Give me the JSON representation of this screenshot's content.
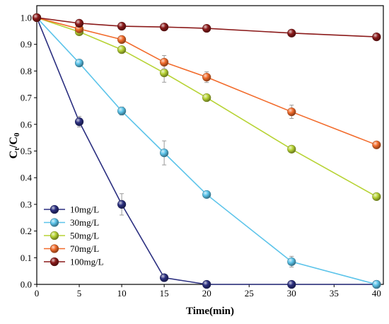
{
  "chart_data": {
    "type": "line",
    "xlabel": "Time(min)",
    "ylabel_segments": [
      {
        "text": "C",
        "sub": false
      },
      {
        "text": "t",
        "sub": true
      },
      {
        "text": "/C",
        "sub": false
      },
      {
        "text": "0",
        "sub": true
      }
    ],
    "x": [
      0,
      5,
      10,
      15,
      20,
      30,
      40
    ],
    "xlim": [
      0,
      40.8
    ],
    "ylim": [
      0,
      1.045
    ],
    "xticks": [
      "0",
      "5",
      "10",
      "15",
      "20",
      "25",
      "30",
      "35",
      "40"
    ],
    "yticks": [
      "0.0",
      "0.1",
      "0.2",
      "0.3",
      "0.4",
      "0.5",
      "0.6",
      "0.7",
      "0.8",
      "0.9",
      "1.0"
    ],
    "grid": false,
    "legend_position": "lower-left",
    "marker": "sphere",
    "errorbar_color": "#9a9a9a",
    "series": [
      {
        "name": "10mg/L",
        "color": "#2b2f80",
        "values": [
          1.0,
          0.61,
          0.3,
          0.025,
          0.0,
          0.0,
          0.0
        ],
        "errors": [
          0,
          0.02,
          0.04,
          0.01,
          0,
          0,
          0
        ]
      },
      {
        "name": "30mg/L",
        "color": "#5cc4ea",
        "values": [
          1.0,
          0.83,
          0.65,
          0.493,
          0.337,
          0.085,
          0.0
        ],
        "errors": [
          0,
          0.01,
          0.015,
          0.045,
          0.01,
          0.02,
          0
        ]
      },
      {
        "name": "50mg/L",
        "color": "#b7d334",
        "values": [
          1.0,
          0.947,
          0.88,
          0.793,
          0.7,
          0.507,
          0.329
        ],
        "errors": [
          0,
          0.01,
          0.01,
          0.035,
          0.01,
          0.01,
          0.01
        ]
      },
      {
        "name": "70mg/L",
        "color": "#f26b2b",
        "values": [
          1.0,
          0.958,
          0.918,
          0.833,
          0.777,
          0.647,
          0.523
        ],
        "errors": [
          0,
          0.01,
          0.01,
          0.025,
          0.02,
          0.025,
          0.01
        ]
      },
      {
        "name": "100mg/L",
        "color": "#8b1a1a",
        "values": [
          1.0,
          0.979,
          0.968,
          0.965,
          0.96,
          0.942,
          0.928
        ],
        "errors": [
          0,
          0.01,
          0.005,
          0.005,
          0.005,
          0.005,
          0.005
        ]
      }
    ]
  }
}
